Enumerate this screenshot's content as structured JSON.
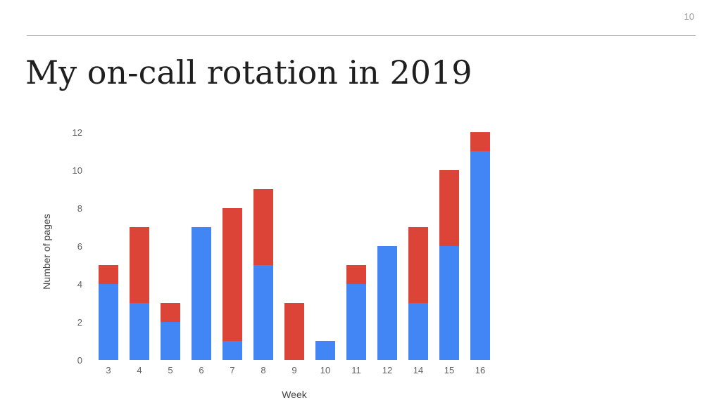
{
  "slide": {
    "page_number": "10",
    "title": "My on-call rotation in 2019"
  },
  "chart_data": {
    "type": "bar",
    "stacked": true,
    "categories": [
      "3",
      "4",
      "5",
      "6",
      "7",
      "8",
      "9",
      "10",
      "11",
      "12",
      "14",
      "15",
      "16"
    ],
    "series": [
      {
        "values": [
          4,
          3,
          2,
          7,
          1,
          5,
          0,
          1,
          4,
          6,
          3,
          6,
          11
        ],
        "color": "#4285f4"
      },
      {
        "values": [
          1,
          4,
          1,
          0,
          7,
          4,
          3,
          0,
          1,
          0,
          4,
          4,
          1
        ],
        "color": "#db4437"
      }
    ],
    "xlabel": "Week",
    "ylabel": "Number of pages",
    "ylim": [
      0,
      12
    ],
    "yticks": [
      "0",
      "2",
      "4",
      "6",
      "8",
      "10",
      "12"
    ],
    "grid": false,
    "legend": "none"
  }
}
